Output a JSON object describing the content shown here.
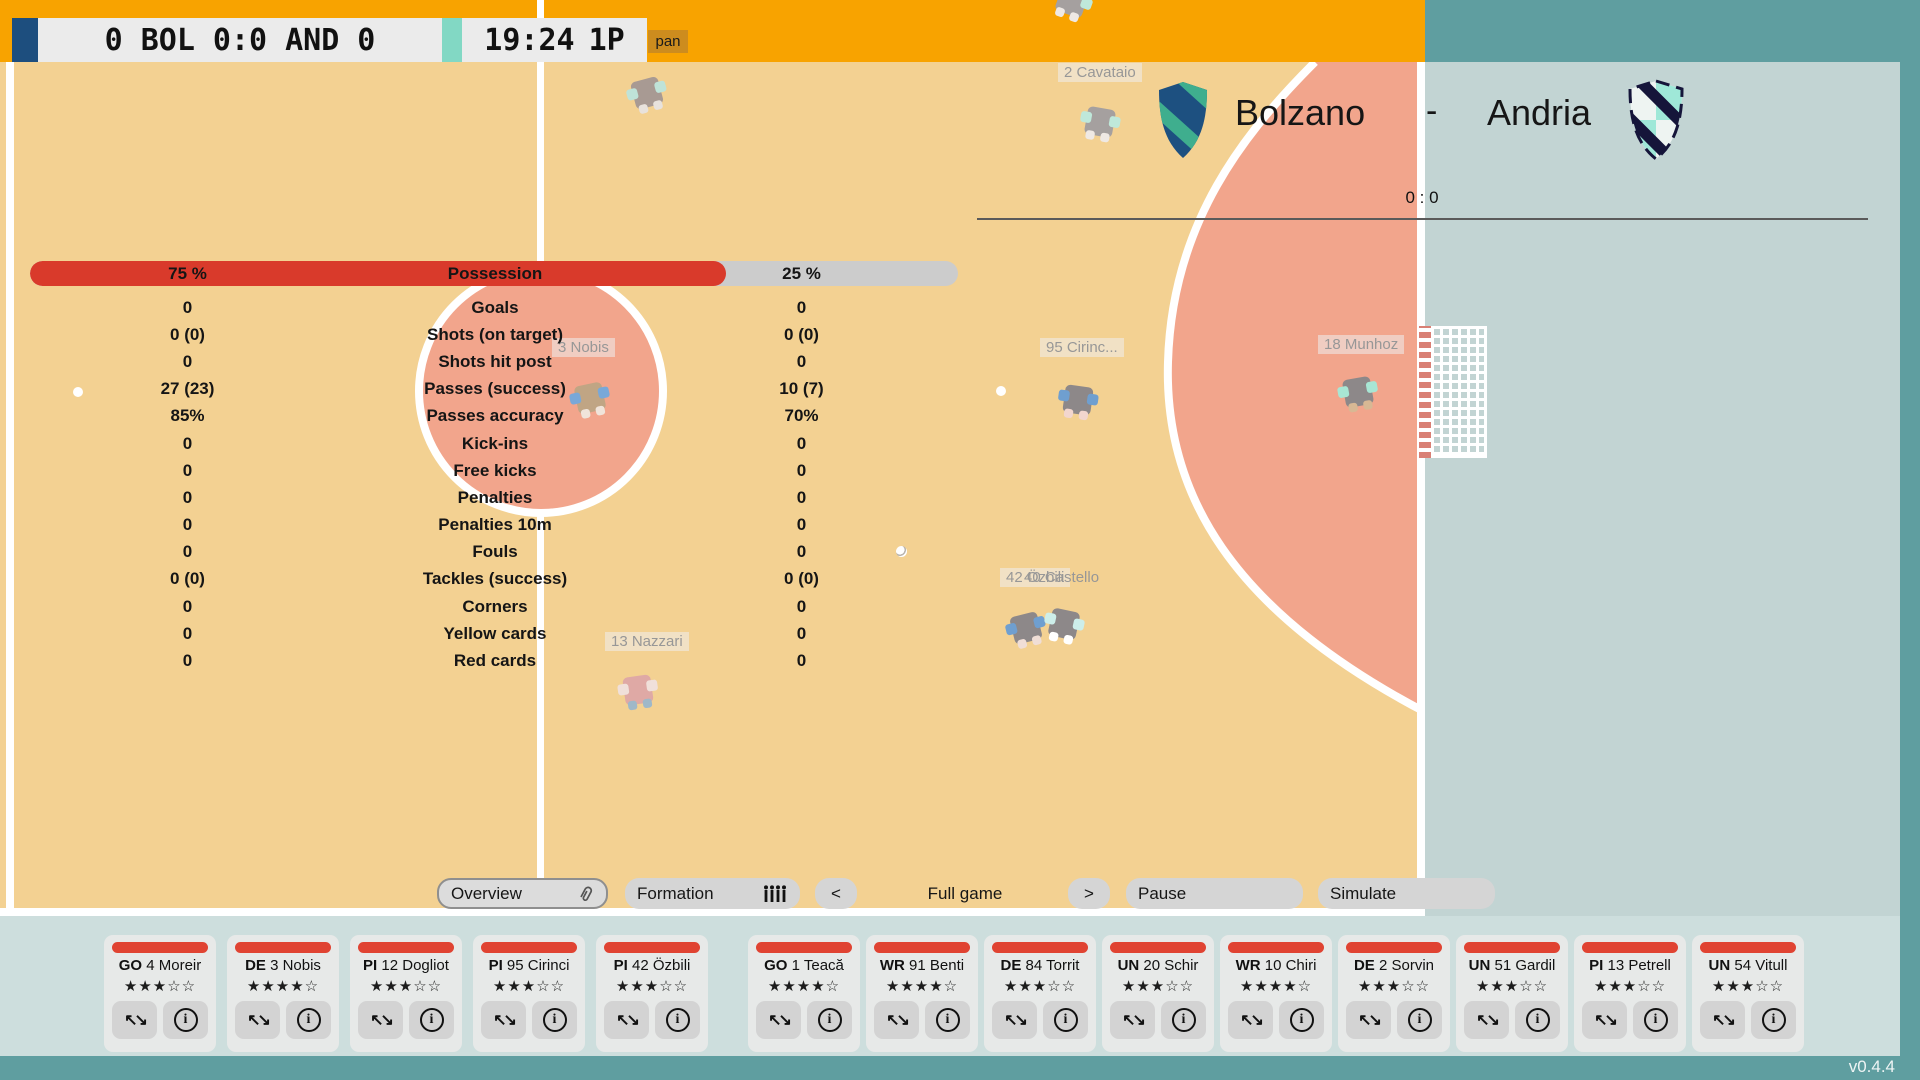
{
  "scoreboard": {
    "home_score": "0",
    "home_abbr": "BOL",
    "score": "0:0",
    "away_abbr": "AND",
    "away_score": "0",
    "clock": "19:24",
    "period": "1P",
    "pan_label": "pan"
  },
  "header": {
    "home_team": "Bolzano",
    "separator": "-",
    "away_team": "Andria",
    "score_line": "0 : 0"
  },
  "stats": {
    "possession": {
      "home": "75 %",
      "label": "Possession",
      "away": "25 %",
      "home_pct": 75
    },
    "rows": [
      {
        "label": "Goals",
        "home": "0",
        "away": "0"
      },
      {
        "label": "Shots (on target)",
        "home": "0 (0)",
        "away": "0 (0)"
      },
      {
        "label": "Shots hit post",
        "home": "0",
        "away": "0"
      },
      {
        "label": "Passes (success)",
        "home": "27 (23)",
        "away": "10 (7)"
      },
      {
        "label": "Passes accuracy",
        "home": "85%",
        "away": "70%"
      },
      {
        "label": "Kick-ins",
        "home": "0",
        "away": "0"
      },
      {
        "label": "Free kicks",
        "home": "0",
        "away": "0"
      },
      {
        "label": "Penalties",
        "home": "0",
        "away": "0"
      },
      {
        "label": "Penalties 10m",
        "home": "0",
        "away": "0"
      },
      {
        "label": "Fouls",
        "home": "0",
        "away": "0"
      },
      {
        "label": "Tackles (success)",
        "home": "0 (0)",
        "away": "0 (0)"
      },
      {
        "label": "Corners",
        "home": "0",
        "away": "0"
      },
      {
        "label": "Yellow cards",
        "home": "0",
        "away": "0"
      },
      {
        "label": "Red cards",
        "home": "0",
        "away": "0"
      }
    ]
  },
  "pitch": {
    "players": [
      {
        "label": "2 Cavataio"
      },
      {
        "label": "3 Nobis"
      },
      {
        "label": "95 Cirinc..."
      },
      {
        "label": "18 Munhoz"
      },
      {
        "label": "42 Özbili"
      },
      {
        "label": "40 Castello"
      },
      {
        "label": "13 Nazzari"
      }
    ]
  },
  "controls": {
    "overview": "Overview",
    "formation": "Formation",
    "prev": "<",
    "speed": "Full game",
    "next": ">",
    "pause": "Pause",
    "simulate": "Simulate"
  },
  "squads": {
    "home": [
      {
        "pos": "GO",
        "number": "4",
        "name": "Moreir",
        "stars": 3
      },
      {
        "pos": "DE",
        "number": "3",
        "name": "Nobis",
        "stars": 4
      },
      {
        "pos": "PI",
        "number": "12",
        "name": "Dogliot",
        "stars": 3
      },
      {
        "pos": "PI",
        "number": "95",
        "name": "Cirinci",
        "stars": 3
      },
      {
        "pos": "PI",
        "number": "42",
        "name": "Özbili",
        "stars": 3
      }
    ],
    "away": [
      {
        "pos": "GO",
        "number": "1",
        "name": "Teacă",
        "stars": 4
      },
      {
        "pos": "WR",
        "number": "91",
        "name": "Benti",
        "stars": 4
      },
      {
        "pos": "DE",
        "number": "84",
        "name": "Torrit",
        "stars": 3
      },
      {
        "pos": "UN",
        "number": "20",
        "name": "Schir",
        "stars": 3
      },
      {
        "pos": "WR",
        "number": "10",
        "name": "Chiri",
        "stars": 4
      },
      {
        "pos": "DE",
        "number": "2",
        "name": "Sorvin",
        "stars": 3
      },
      {
        "pos": "UN",
        "number": "51",
        "name": "Gardil",
        "stars": 3
      },
      {
        "pos": "PI",
        "number": "13",
        "name": "Petrell",
        "stars": 3
      },
      {
        "pos": "UN",
        "number": "54",
        "name": "Vitull",
        "stars": 3
      }
    ]
  },
  "version": "v0.4.4",
  "colors": {
    "frame_teal": "#5f9ea0",
    "top_bar_orange": "#f8a300",
    "field_tan": "#f3d192",
    "zone_salmon": "#f2a58c",
    "possession_red": "#d93a2b",
    "card_bar_red": "#e04332",
    "scoreboard_navy": "#1d4e7e",
    "scoreboard_teal": "#82d8c4",
    "panel_blue": "#c2d4d3"
  }
}
